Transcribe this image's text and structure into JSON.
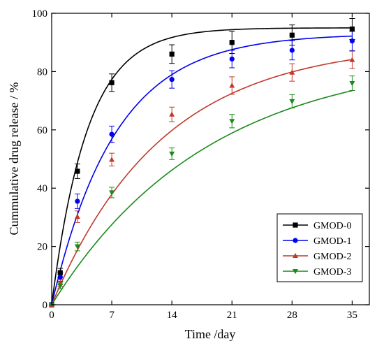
{
  "chart_data": {
    "type": "scatter",
    "title": "",
    "xlabel": "Time /day",
    "ylabel": "Cummulative drug release / %",
    "xlim": [
      0,
      37
    ],
    "ylim": [
      0,
      100
    ],
    "xticks": [
      0,
      7,
      14,
      21,
      28,
      35
    ],
    "yticks": [
      0,
      20,
      40,
      60,
      80,
      100
    ],
    "grid": false,
    "legend_position": "bottom-right",
    "series": [
      {
        "name": "GMOD-0",
        "color": "#000000",
        "marker": "square",
        "x": [
          0,
          1,
          3,
          7,
          14,
          21,
          28,
          35
        ],
        "y": [
          0,
          11,
          45.8,
          76.2,
          86,
          90,
          92.5,
          94.6
        ],
        "err": [
          0,
          1.5,
          2.5,
          3,
          3.2,
          3.8,
          3.5,
          3.6
        ],
        "fit": {
          "ymax": 95,
          "k": 0.24,
          "n": 1
        }
      },
      {
        "name": "GMOD-1",
        "color": "#0000ee",
        "marker": "circle",
        "x": [
          0,
          1,
          3,
          7,
          14,
          21,
          28,
          35
        ],
        "y": [
          0,
          9.5,
          35.5,
          58.5,
          77.3,
          84.3,
          87.3,
          90.5
        ],
        "err": [
          0,
          1.5,
          2.5,
          2.8,
          3,
          3,
          3.3,
          3.3
        ],
        "fit": {
          "ymax": 93,
          "k": 0.135,
          "n": 1
        }
      },
      {
        "name": "GMOD-2",
        "color": "#c0392b",
        "marker": "triangle-up",
        "x": [
          0,
          1,
          3,
          7,
          14,
          21,
          28,
          35
        ],
        "y": [
          0,
          7.5,
          30.2,
          49.8,
          65.3,
          75.2,
          79.7,
          84
        ],
        "err": [
          0,
          1.2,
          2,
          2.2,
          2.5,
          3,
          3,
          3
        ],
        "fit": {
          "ymax": 90,
          "k": 0.078,
          "n": 1
        }
      },
      {
        "name": "GMOD-3",
        "color": "#1a8a1a",
        "marker": "triangle-down",
        "x": [
          0,
          1,
          3,
          7,
          14,
          21,
          28,
          35
        ],
        "y": [
          0,
          6.5,
          20,
          38.5,
          51.8,
          63,
          69.8,
          76
        ],
        "err": [
          0,
          1,
          1.5,
          1.8,
          2,
          2.3,
          2.3,
          2.5
        ],
        "fit": {
          "ymax": 86,
          "k": 0.055,
          "n": 1
        }
      }
    ]
  }
}
